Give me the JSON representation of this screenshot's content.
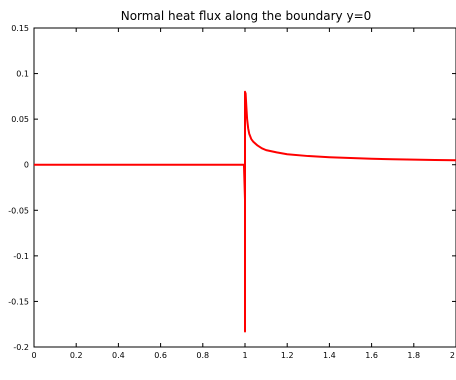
{
  "chart_data": {
    "type": "line",
    "title": "Normal heat flux along the boundary y=0",
    "xlabel": "",
    "ylabel": "",
    "xlim": [
      0,
      2
    ],
    "ylim": [
      -0.2,
      0.15
    ],
    "xticks": [
      0,
      0.2,
      0.4,
      0.6,
      0.8,
      1,
      1.2,
      1.4,
      1.6,
      1.8,
      2
    ],
    "xtick_labels": [
      "0",
      "0.2",
      "0.4",
      "0.6",
      "0.8",
      "1",
      "1.2",
      "1.4",
      "1.6",
      "1.8",
      "2"
    ],
    "yticks": [
      0.15,
      0.1,
      0.05,
      0,
      -0.05,
      -0.1,
      -0.15,
      -0.2
    ],
    "ytick_labels": [
      "0.15",
      "0.1",
      "0.05",
      "0",
      "-0.05",
      "-0.1",
      "-0.15",
      "-0.2"
    ],
    "grid": false,
    "series": [
      {
        "color": "#ff0000",
        "x": [
          0,
          0.5,
          0.995,
          1.0,
          1.0,
          1.0,
          1.003,
          1.006,
          1.01,
          1.015,
          1.02,
          1.03,
          1.04,
          1.06,
          1.08,
          1.1,
          1.15,
          1.2,
          1.3,
          1.4,
          1.5,
          1.6,
          1.7,
          1.8,
          1.9,
          2.0
        ],
        "y": [
          0,
          0,
          0,
          -0.038,
          -0.183,
          0.08,
          0.078,
          0.065,
          0.05,
          0.04,
          0.034,
          0.028,
          0.025,
          0.021,
          0.018,
          0.016,
          0.0135,
          0.0115,
          0.0095,
          0.0082,
          0.0073,
          0.0066,
          0.006,
          0.0056,
          0.0052,
          0.0049
        ]
      }
    ]
  }
}
